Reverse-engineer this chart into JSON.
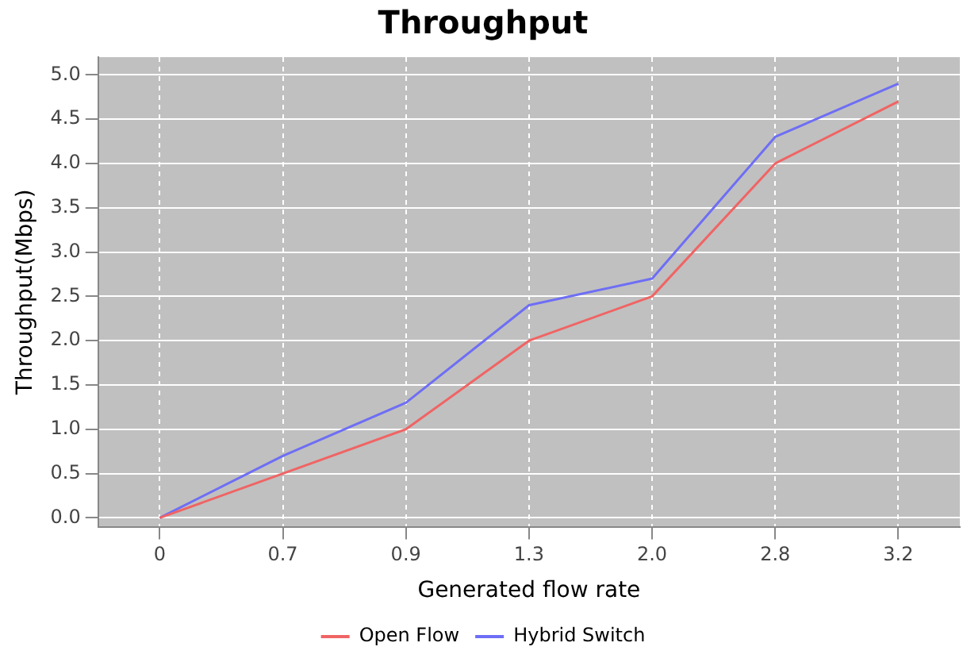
{
  "chart_data": {
    "type": "line",
    "title": "Throughput",
    "xlabel": "Generated flow rate",
    "ylabel": "Throughput(Mbps)",
    "categories": [
      "0",
      "0.7",
      "0.9",
      "1.3",
      "2.0",
      "2.8",
      "3.2"
    ],
    "series": [
      {
        "name": "Open Flow",
        "color": "#f06464",
        "values": [
          0,
          0.5,
          1.0,
          2.0,
          2.5,
          4.0,
          4.7
        ]
      },
      {
        "name": "Hybrid Switch",
        "color": "#6e6ef5",
        "values": [
          0,
          0.7,
          1.3,
          2.4,
          2.7,
          4.3,
          4.9
        ]
      }
    ],
    "ylim": [
      -0.1,
      5.2
    ],
    "yticks": [
      {
        "value": 0,
        "label": "0.0"
      },
      {
        "value": 0.5,
        "label": "0.5"
      },
      {
        "value": 1,
        "label": "1.0"
      },
      {
        "value": 1.5,
        "label": "1.5"
      },
      {
        "value": 2,
        "label": "2.0"
      },
      {
        "value": 2.5,
        "label": "2.5"
      },
      {
        "value": 3,
        "label": "3.0"
      },
      {
        "value": 3.5,
        "label": "3.5"
      },
      {
        "value": 4,
        "label": "4.0"
      },
      {
        "value": 4.5,
        "label": "4.5"
      },
      {
        "value": 5,
        "label": "5.0"
      }
    ],
    "grid": true,
    "legend": "bottom",
    "marker": "none",
    "line_style": "solid"
  }
}
